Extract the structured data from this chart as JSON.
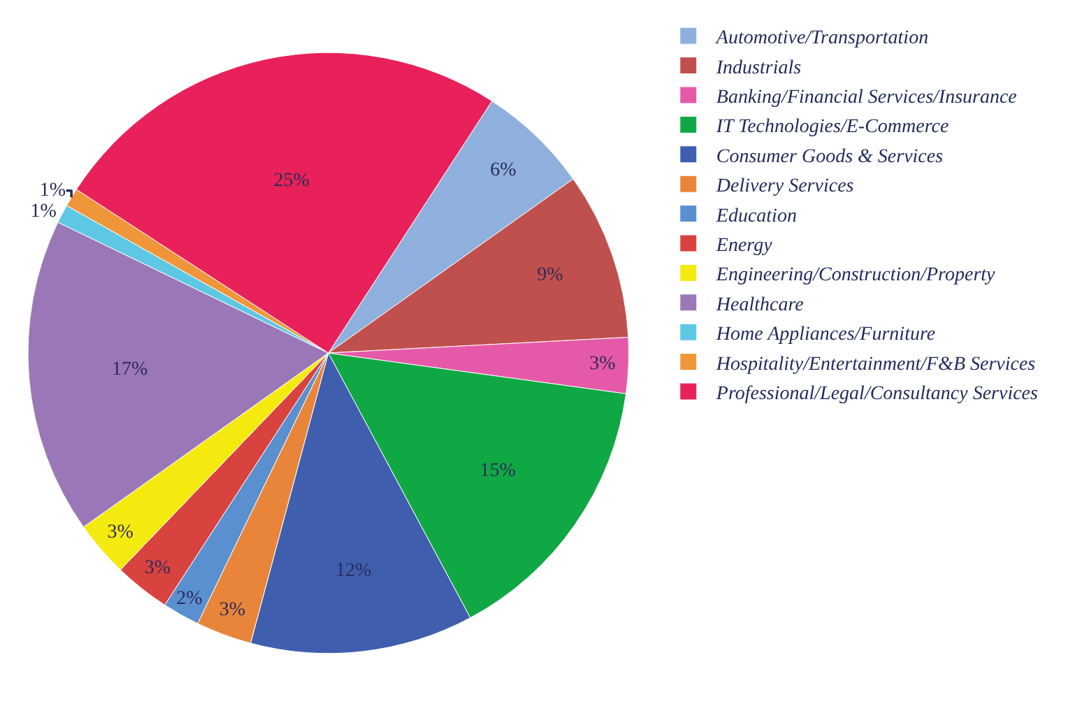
{
  "chart_data": {
    "type": "pie",
    "categories": [
      "Automotive/Transportation",
      "Industrials",
      "Banking/Financial Services/Insurance",
      "IT Technologies/E-Commerce",
      "Consumer Goods & Services",
      "Delivery Services",
      "Education",
      "Energy",
      "Engineering/Construction/Property",
      "Healthcare",
      "Home Appliances/Furniture",
      "Hospitality/Entertainment/F&B Services",
      "Professional/Legal/Consultancy Services"
    ],
    "values": [
      6,
      9,
      3,
      15,
      12,
      3,
      2,
      3,
      3,
      17,
      1,
      1,
      25
    ],
    "value_labels": [
      "6%",
      "9%",
      "3%",
      "15%",
      "12%",
      "3%",
      "2%",
      "3%",
      "3%",
      "17%",
      "1%",
      "1%",
      "25%"
    ],
    "colors": [
      "#8fb0dc",
      "#c0504d",
      "#e55aa8",
      "#10a844",
      "#3f5fae",
      "#e8853a",
      "#5a8fd0",
      "#d9433f",
      "#f5ea10",
      "#9a78b8",
      "#5ec8e4",
      "#f0963a",
      "#e8215a"
    ],
    "legend": "right"
  }
}
